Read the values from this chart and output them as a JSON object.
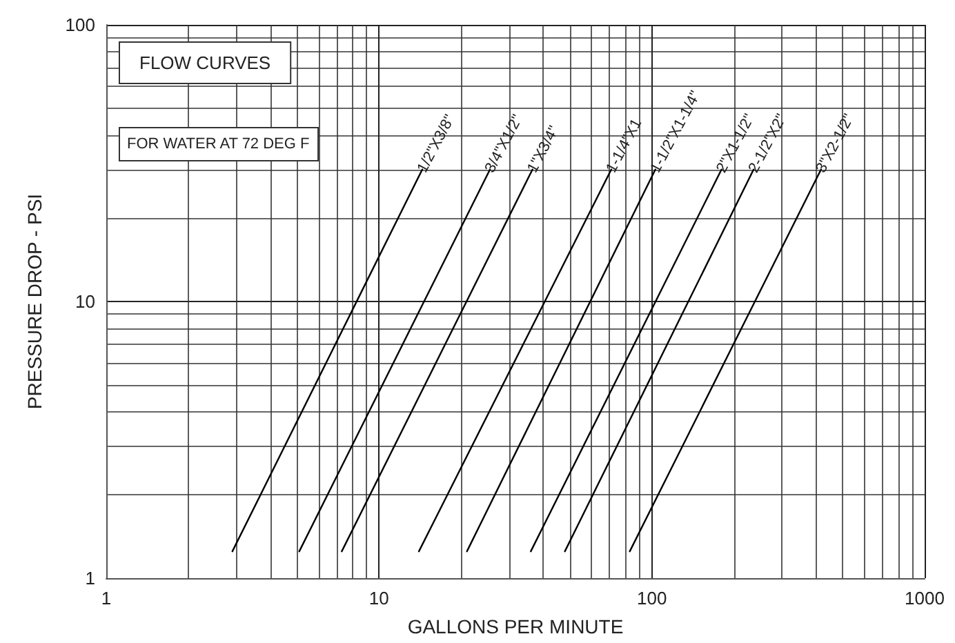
{
  "chart_data": {
    "type": "line",
    "xlabel": "GALLONS PER MINUTE",
    "ylabel": "PRESSURE DROP - PSI",
    "annotations": [
      "FLOW CURVES",
      "FOR WATER AT 72 DEG F"
    ],
    "log": "xy",
    "grid": true,
    "legend": false,
    "marker": "none",
    "line_style": "solid",
    "xlim": [
      1,
      1000
    ],
    "xticks": [
      1,
      10,
      100,
      1000
    ],
    "ylim": [
      1,
      100
    ],
    "yticks": [
      1,
      10,
      100
    ],
    "series": [
      {
        "name": "1/2\"X3/8\"",
        "color": "#000000",
        "x": [
          2.9,
          14.4
        ],
        "values": [
          1.25,
          30
        ]
      },
      {
        "name": "3/4\"X1/2\"",
        "color": "#000000",
        "x": [
          5.1,
          25.5
        ],
        "values": [
          1.25,
          30
        ]
      },
      {
        "name": "1\"X3/4\"",
        "color": "#000000",
        "x": [
          7.3,
          36.5
        ],
        "values": [
          1.25,
          30
        ]
      },
      {
        "name": "1-1/4\"X1",
        "color": "#000000",
        "x": [
          14,
          71
        ],
        "values": [
          1.25,
          30
        ]
      },
      {
        "name": "1-1/2\"X1-1/4\"",
        "color": "#000000",
        "x": [
          21,
          103
        ],
        "values": [
          1.25,
          30
        ]
      },
      {
        "name": "2\"X1-1/2\"",
        "color": "#000000",
        "x": [
          36,
          180
        ],
        "values": [
          1.25,
          30
        ]
      },
      {
        "name": "2-1/2\"X2\"",
        "color": "#000000",
        "x": [
          48,
          236
        ],
        "values": [
          1.25,
          30
        ]
      },
      {
        "name": "3\"X2-1/2\"",
        "color": "#000000",
        "x": [
          83,
          417
        ],
        "values": [
          1.25,
          30
        ]
      }
    ]
  }
}
